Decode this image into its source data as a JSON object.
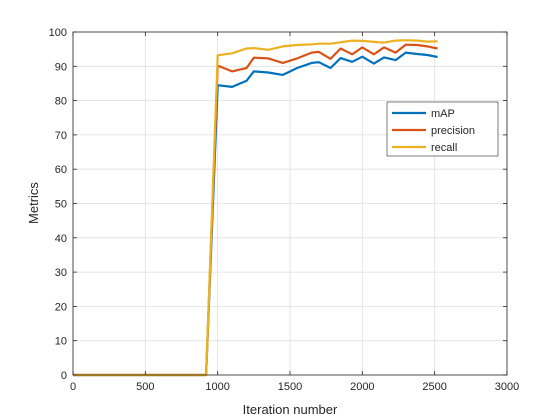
{
  "chart_data": {
    "type": "line",
    "xlabel": "Iteration number",
    "ylabel": "Metrics",
    "xlim": [
      0,
      3000
    ],
    "ylim": [
      0,
      100
    ],
    "xticks": [
      0,
      500,
      1000,
      1500,
      2000,
      2500,
      3000
    ],
    "yticks": [
      0,
      10,
      20,
      30,
      40,
      50,
      60,
      70,
      80,
      90,
      100
    ],
    "grid": true,
    "legend_position": "upper-right inside",
    "series": [
      {
        "name": "mAP",
        "color": "#0072BD",
        "x": [
          0,
          920,
          1000,
          1100,
          1200,
          1250,
          1350,
          1450,
          1550,
          1650,
          1700,
          1780,
          1850,
          1930,
          2000,
          2080,
          2150,
          2230,
          2300,
          2380,
          2450,
          2520
        ],
        "y": [
          0,
          0,
          84.5,
          84,
          85.8,
          88.5,
          88.2,
          87.5,
          89.5,
          91,
          91.2,
          89.5,
          92.4,
          91.3,
          92.8,
          90.8,
          92.6,
          91.8,
          94,
          93.6,
          93.3,
          92.7
        ]
      },
      {
        "name": "precision",
        "color": "#D95319",
        "x": [
          0,
          920,
          1000,
          1100,
          1200,
          1250,
          1350,
          1450,
          1550,
          1650,
          1700,
          1780,
          1850,
          1930,
          2000,
          2080,
          2150,
          2230,
          2300,
          2380,
          2450,
          2520
        ],
        "y": [
          0,
          0,
          90.2,
          88.5,
          89.5,
          92.5,
          92.3,
          91,
          92.3,
          94,
          94.2,
          92.2,
          95.2,
          93.5,
          95.5,
          93.5,
          95.5,
          94,
          96.3,
          96.2,
          95.8,
          95.2
        ]
      },
      {
        "name": "recall",
        "color": "#EDB120",
        "x": [
          0,
          920,
          1000,
          1100,
          1200,
          1250,
          1350,
          1450,
          1550,
          1650,
          1700,
          1780,
          1850,
          1930,
          2000,
          2080,
          2150,
          2230,
          2300,
          2380,
          2450,
          2520
        ],
        "y": [
          0,
          0,
          93.2,
          93.8,
          95.2,
          95.3,
          94.8,
          95.8,
          96.2,
          96.4,
          96.6,
          96.6,
          97.0,
          97.5,
          97.4,
          97.1,
          96.9,
          97.5,
          97.6,
          97.5,
          97.2,
          97.3
        ]
      }
    ]
  }
}
